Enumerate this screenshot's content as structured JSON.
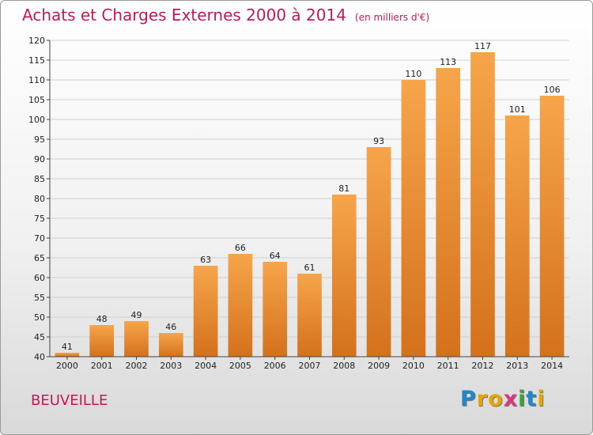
{
  "header": {
    "title": "Achats et Charges Externes 2000 à 2014",
    "unit": "(en milliers d'€)"
  },
  "town": "BEUVEILLE",
  "logo": {
    "letters": [
      {
        "ch": "P",
        "color": "#1e88c8"
      },
      {
        "ch": "r",
        "color": "#e8a400"
      },
      {
        "ch": "o",
        "color": "#e8a400"
      },
      {
        "ch": "x",
        "color": "#d83a7a"
      },
      {
        "ch": "i",
        "color": "#3aa23a"
      },
      {
        "ch": "t",
        "color": "#1e88c8"
      },
      {
        "ch": "i",
        "color": "#e8a400"
      }
    ]
  },
  "colors": {
    "bar_top": "#f6a54b",
    "bar_bottom": "#d4711c",
    "grid": "#d0d0d0",
    "accent": "#c2185b"
  },
  "chart_data": {
    "type": "bar",
    "title": "Achats et Charges Externes 2000 à 2014",
    "subtitle": "(en milliers d'€)",
    "categories": [
      "2000",
      "2001",
      "2002",
      "2003",
      "2004",
      "2005",
      "2006",
      "2007",
      "2008",
      "2009",
      "2010",
      "2011",
      "2012",
      "2013",
      "2014"
    ],
    "values": [
      41,
      48,
      49,
      46,
      63,
      66,
      64,
      61,
      81,
      93,
      110,
      113,
      117,
      101,
      106
    ],
    "ylim": [
      40,
      120
    ],
    "yticks": [
      40,
      45,
      50,
      55,
      60,
      65,
      70,
      75,
      80,
      85,
      90,
      95,
      100,
      105,
      110,
      115,
      120
    ],
    "grid": true,
    "xlabel": "",
    "ylabel": ""
  }
}
